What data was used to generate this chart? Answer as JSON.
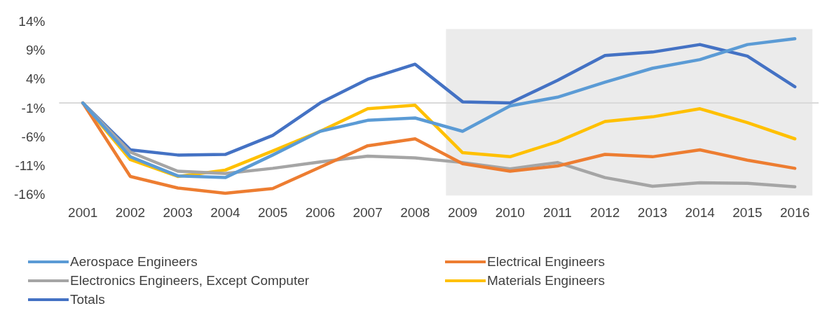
{
  "chart_data": {
    "type": "line",
    "categories": [
      "2001",
      "2002",
      "2003",
      "2004",
      "2005",
      "2006",
      "2007",
      "2008",
      "2009",
      "2010",
      "2011",
      "2012",
      "2013",
      "2014",
      "2015",
      "2016"
    ],
    "series": [
      {
        "name": "Aerospace Engineers",
        "color": "#5b9bd5",
        "values": [
          0,
          -9.3,
          -12.6,
          -12.9,
          -9.0,
          -4.9,
          -3.0,
          -2.6,
          -4.9,
          -0.5,
          1.0,
          3.6,
          6.0,
          7.5,
          10.1,
          11.1
        ]
      },
      {
        "name": "Electrical Engineers",
        "color": "#ed7d31",
        "values": [
          0,
          -12.7,
          -14.7,
          -15.6,
          -14.8,
          -11.1,
          -7.4,
          -6.2,
          -10.5,
          -11.8,
          -10.9,
          -8.9,
          -9.3,
          -8.1,
          -9.9,
          -11.3
        ]
      },
      {
        "name": "Electronics Engineers, Except Computer",
        "color": "#a5a5a5",
        "values": [
          0,
          -8.5,
          -11.8,
          -12.2,
          -11.3,
          -10.2,
          -9.2,
          -9.5,
          -10.3,
          -11.4,
          -10.3,
          -12.9,
          -14.4,
          -13.8,
          -13.9,
          -14.5
        ]
      },
      {
        "name": "Materials Engineers",
        "color": "#ffc000",
        "values": [
          0,
          -9.8,
          -12.7,
          -11.6,
          -8.3,
          -4.9,
          -1.0,
          -0.4,
          -8.6,
          -9.3,
          -6.7,
          -3.2,
          -2.4,
          -1.0,
          -3.4,
          -6.2
        ]
      },
      {
        "name": "Totals",
        "color": "#4472c4",
        "values": [
          0,
          -8.1,
          -9.0,
          -8.9,
          -5.6,
          0,
          4.1,
          6.7,
          0.2,
          0,
          3.9,
          8.2,
          8.8,
          10.1,
          8.1,
          2.8
        ]
      }
    ],
    "ylim": [
      -16,
      14
    ],
    "yticks": [
      {
        "value": -16,
        "label": "-16%"
      },
      {
        "value": -11,
        "label": "-11%"
      },
      {
        "value": -6,
        "label": "-6%"
      },
      {
        "value": -1,
        "label": "-1%"
      },
      {
        "value": 4,
        "label": "4%"
      },
      {
        "value": 9,
        "label": "9%"
      },
      {
        "value": 14,
        "label": "14%"
      }
    ],
    "ref_lines": [
      {
        "axis": "y",
        "value": 0,
        "color": "#d9d9d9"
      }
    ],
    "bands": [
      {
        "axis": "x",
        "from": "2009",
        "to": "2016",
        "color": "#ebebeb"
      }
    ],
    "grid": false,
    "legend": "bottom",
    "marker": "none",
    "line_style": "solid"
  }
}
